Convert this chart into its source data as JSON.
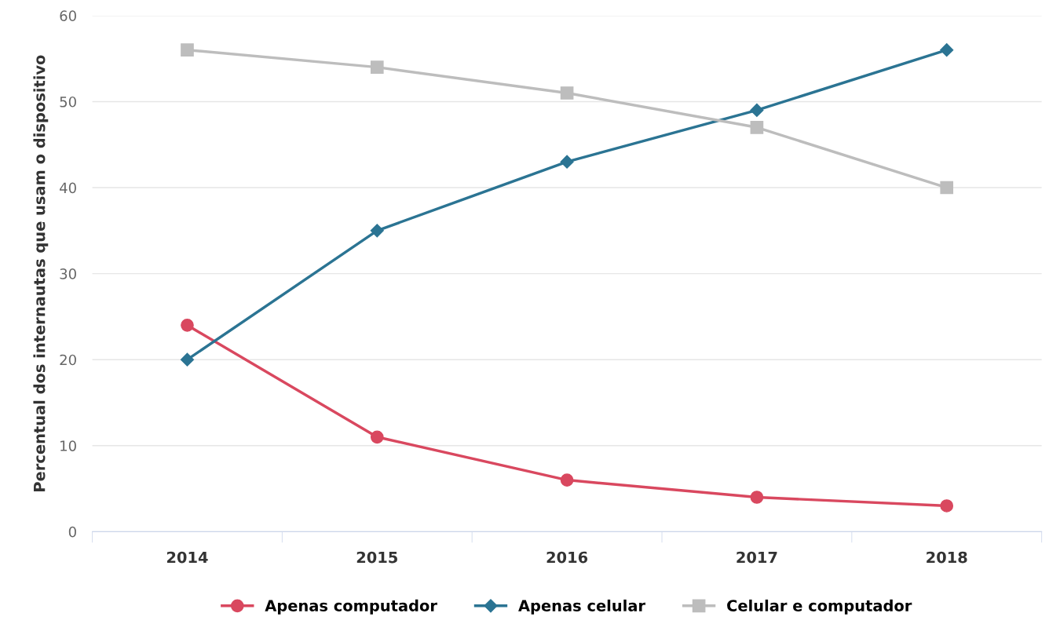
{
  "chart_data": {
    "type": "line",
    "categories": [
      "2014",
      "2015",
      "2016",
      "2017",
      "2018"
    ],
    "ylabel": "Percentual dos internautas que usam o dispositivo",
    "series": [
      {
        "name": "Apenas computador",
        "color": "#d9485f",
        "marker": "circle",
        "values": [
          24,
          11,
          6,
          4,
          3
        ]
      },
      {
        "name": "Apenas celular",
        "color": "#2b7493",
        "marker": "diamond",
        "values": [
          20,
          35,
          43,
          49,
          56
        ]
      },
      {
        "name": "Celular e computador",
        "color": "#bdbdbd",
        "marker": "square",
        "values": [
          56,
          54,
          51,
          47,
          40
        ]
      }
    ],
    "ylim": [
      0,
      60
    ],
    "yticks": [
      0,
      10,
      20,
      30,
      40,
      50,
      60
    ],
    "grid": "y",
    "legend": "bottom",
    "line_style": "solid"
  }
}
